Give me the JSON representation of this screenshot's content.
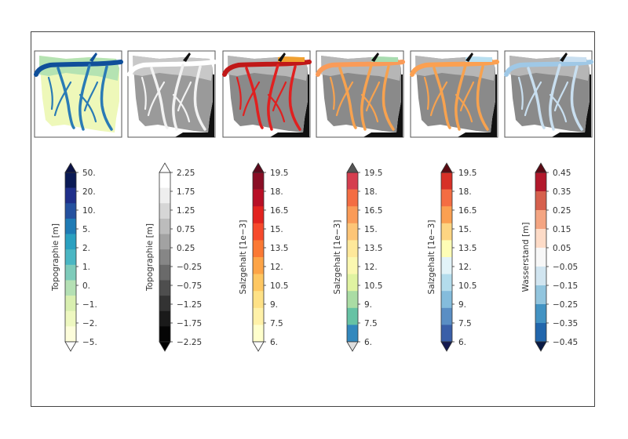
{
  "panels": [
    {
      "id": "topo-color",
      "map_style": "blue-green",
      "colorbar": {
        "title": "Topographie [m]",
        "labels": [
          "50.",
          "20.",
          "10.",
          "5.",
          "2.",
          "1.",
          "0.",
          "−1.",
          "−2.",
          "−5."
        ],
        "colors": [
          "#0a1a55",
          "#1f2f8a",
          "#24519f",
          "#1f7bb5",
          "#2aa0c0",
          "#4ab6c3",
          "#7ecbba",
          "#b4e0b4",
          "#d9efb0",
          "#eef8c0",
          "#fdfddb"
        ],
        "top_cap": "#0a1245",
        "bottom_cap": "#ffffff"
      }
    },
    {
      "id": "topo-gray",
      "map_style": "gray",
      "colorbar": {
        "title": "Topographie [m]",
        "labels": [
          "2.25",
          "1.75",
          "1.25",
          "0.75",
          "0.25",
          "−0.25",
          "−0.75",
          "−1.25",
          "−1.75",
          "−2.25"
        ],
        "colors": [
          "#ffffff",
          "#eeeeee",
          "#d6d6d6",
          "#bcbcbc",
          "#a2a2a2",
          "#868686",
          "#6a6a6a",
          "#4e4e4e",
          "#333333",
          "#1a1a1a",
          "#050505"
        ],
        "top_cap": "#ffffff",
        "bottom_cap": "#000000"
      }
    },
    {
      "id": "salinity-red",
      "map_style": "red",
      "colorbar": {
        "title": "Salzgehalt [1e−3]",
        "labels": [
          "19.5",
          "18.",
          "16.5",
          "15.",
          "13.5",
          "12.",
          "10.5",
          "9.",
          "7.5",
          "6."
        ],
        "colors": [
          "#8a0e25",
          "#b80f26",
          "#e2231f",
          "#f64a2c",
          "#fb7934",
          "#fda447",
          "#fec762",
          "#fee186",
          "#fff1a8",
          "#ffffcc"
        ],
        "top_cap": "#5c0a1c",
        "bottom_cap": "#ffffff"
      }
    },
    {
      "id": "salinity-spectral",
      "map_style": "orange",
      "colorbar": {
        "title": "Salzgehalt [1e−3]",
        "labels": [
          "19.5",
          "18.",
          "16.5",
          "15.",
          "13.5",
          "12.",
          "10.5",
          "9.",
          "7.5",
          "6."
        ],
        "colors": [
          "#d53e4f",
          "#f46d43",
          "#fa9b58",
          "#fdc577",
          "#fee89a",
          "#fbf8b0",
          "#e0f3a1",
          "#aadca4",
          "#66c2a4",
          "#3288bd"
        ],
        "top_cap": "#555555",
        "bottom_cap": "#dddddd"
      }
    },
    {
      "id": "salinity-diverging",
      "map_style": "orange-blue",
      "colorbar": {
        "title": "Salzgehalt [1e−3]",
        "labels": [
          "19.5",
          "18.",
          "16.5",
          "15.",
          "13.5",
          "12.",
          "10.5",
          "9.",
          "7.5",
          "6."
        ],
        "colors": [
          "#d73027",
          "#f46d43",
          "#fba051",
          "#fdd582",
          "#fefeb6",
          "#e2f3f8",
          "#b3dcec",
          "#84bcdc",
          "#5a8ec4",
          "#3a5fa8"
        ],
        "top_cap": "#5a0a12",
        "bottom_cap": "#141a50"
      }
    },
    {
      "id": "water-level",
      "map_style": "light-blue",
      "colorbar": {
        "title": "Wasserstand [m]",
        "labels": [
          "0.45",
          "0.35",
          "0.25",
          "0.15",
          "0.05",
          "−0.05",
          "−0.15",
          "−0.25",
          "−0.35",
          "−0.45"
        ],
        "colors": [
          "#b2182b",
          "#d6604d",
          "#f4a582",
          "#fddbc7",
          "#f7f7f7",
          "#d1e5f0",
          "#92c5de",
          "#4393c3",
          "#2166ac"
        ],
        "top_cap": "#5a0a14",
        "bottom_cap": "#091a45"
      }
    }
  ]
}
